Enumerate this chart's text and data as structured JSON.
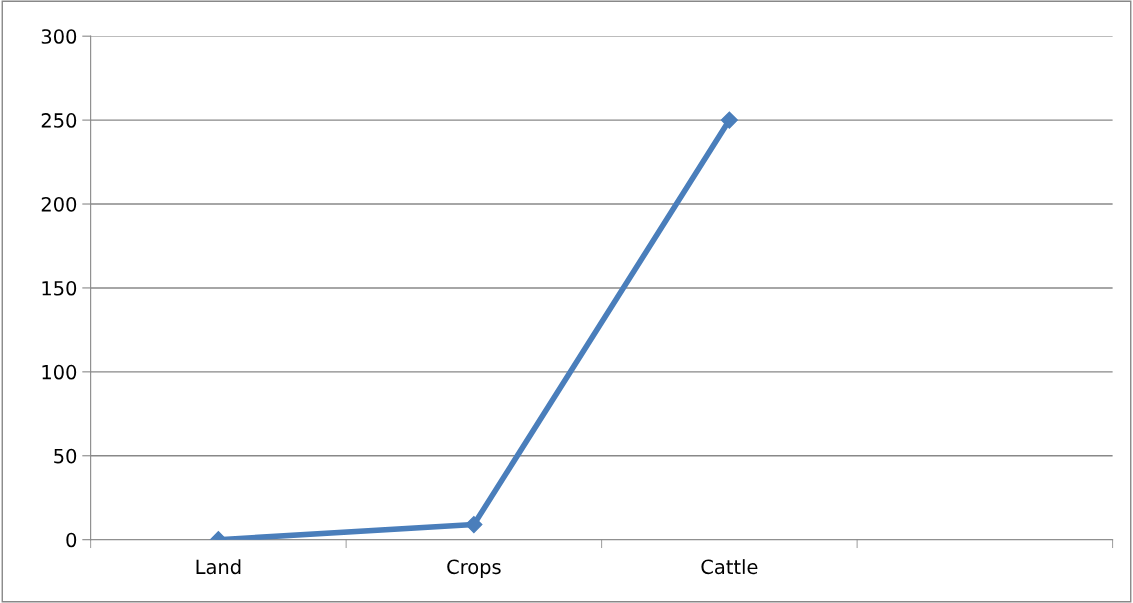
{
  "chart_data": {
    "type": "line",
    "categories": [
      "Land",
      "Crops",
      "Cattle",
      null
    ],
    "series": [
      {
        "color": "#4a7ebb",
        "values": [
          0,
          9,
          250,
          null
        ]
      }
    ],
    "ylim": [
      0,
      300
    ],
    "yticks": [
      0,
      50,
      100,
      150,
      200,
      250,
      300
    ],
    "grid": "y",
    "marker": "diamond",
    "line_style": "solid"
  }
}
